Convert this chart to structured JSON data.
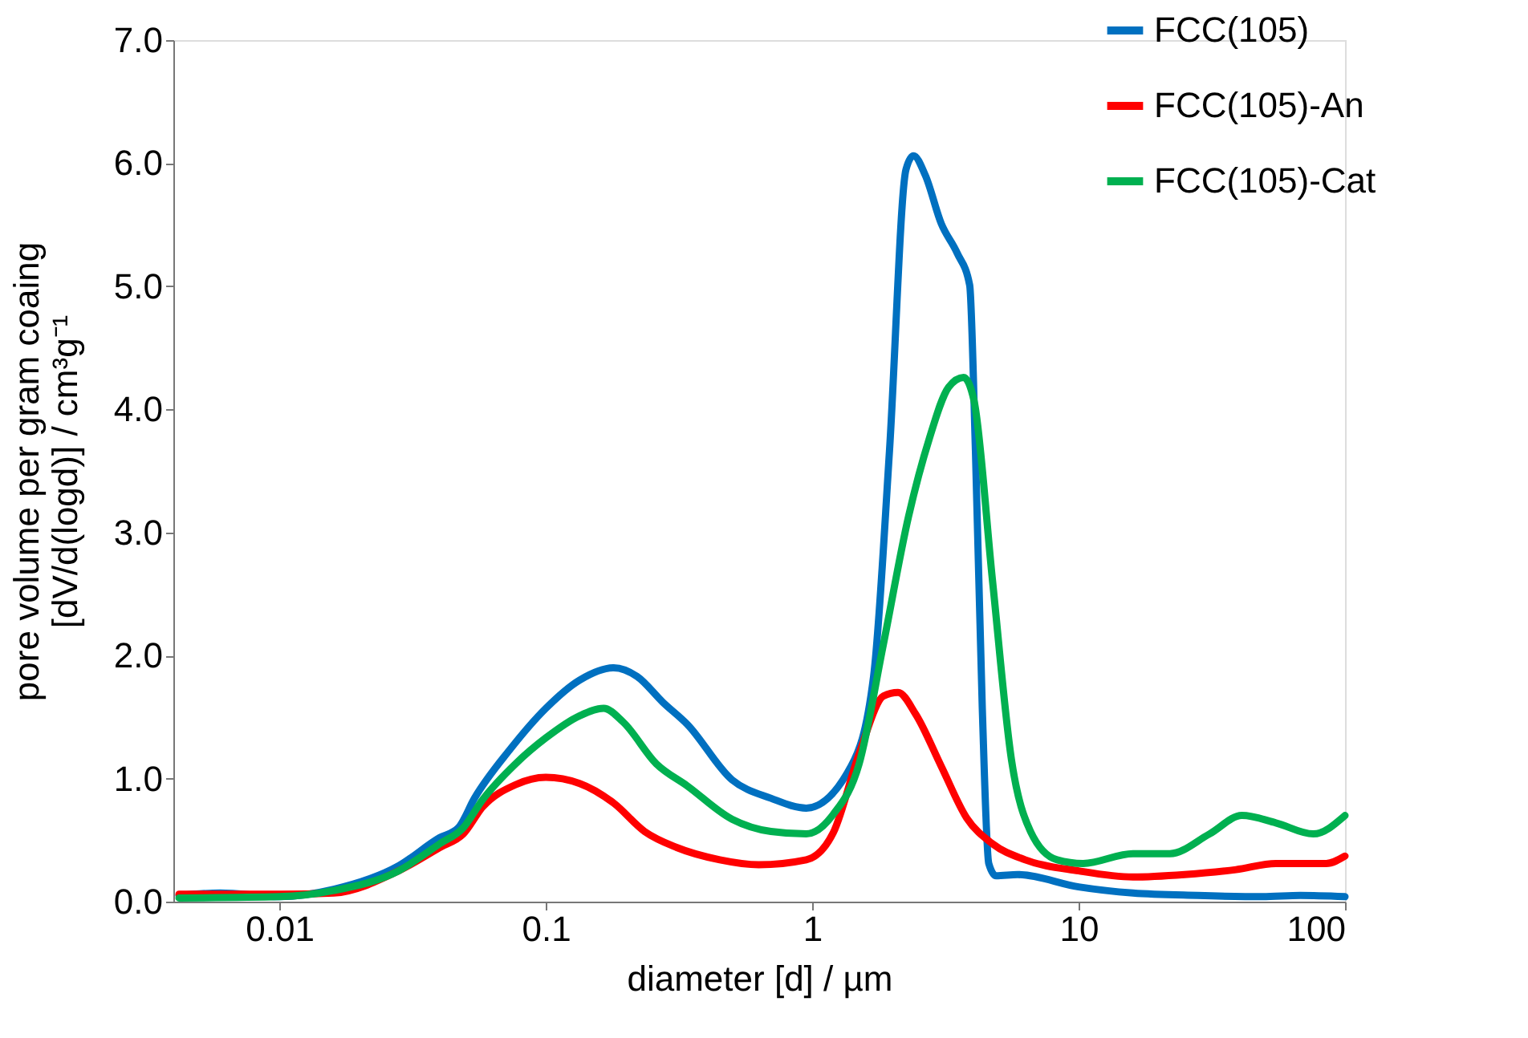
{
  "chart_data": {
    "type": "line",
    "xlabel": "diameter [d] / µm",
    "ylabel": "pore volume per gram coaing\n[dV/d(logd)] / cm³g⁻¹",
    "log": "x",
    "xlim": [
      0.004,
      100
    ],
    "xticks": [
      0.01,
      0.1,
      1,
      10,
      100
    ],
    "ylim": [
      0,
      7
    ],
    "yticks": [
      {
        "value": 0,
        "label": "0.0"
      },
      {
        "value": 1,
        "label": "1.0"
      },
      {
        "value": 2,
        "label": "2.0"
      },
      {
        "value": 3,
        "label": "3.0"
      },
      {
        "value": 4,
        "label": "4.0"
      },
      {
        "value": 5,
        "label": "5.0"
      },
      {
        "value": 6,
        "label": "6.0"
      },
      {
        "value": 7,
        "label": "7.0"
      }
    ],
    "grid": false,
    "legend": "top right",
    "marker": "none",
    "line_style": "solid",
    "series": [
      {
        "name": "FCC(105)",
        "color": "#0070c0",
        "x": [
          0.0042,
          0.006,
          0.01,
          0.016,
          0.028,
          0.04,
          0.047,
          0.054,
          0.073,
          0.1,
          0.134,
          0.18,
          0.22,
          0.275,
          0.34,
          0.5,
          0.7,
          0.95,
          1.4,
          1.7,
          1.95,
          2.25,
          2.4,
          2.66,
          3.05,
          3.5,
          3.9,
          4.1,
          4.35,
          4.6,
          4.9,
          5.9,
          10,
          16,
          28,
          49,
          68,
          100
        ],
        "values": [
          0.05,
          0.07,
          0.04,
          0.1,
          0.29,
          0.52,
          0.6,
          0.84,
          1.23,
          1.57,
          1.8,
          1.9,
          1.83,
          1.62,
          1.44,
          0.99,
          0.84,
          0.76,
          1.1,
          1.83,
          3.66,
          5.95,
          6.06,
          5.9,
          5.51,
          5.27,
          5.01,
          3.66,
          1.57,
          0.31,
          0.21,
          0.22,
          0.12,
          0.07,
          0.05,
          0.04,
          0.05,
          0.04
        ]
      },
      {
        "name": "FCC(105)-An",
        "color": "#ff0000",
        "x": [
          0.0042,
          0.01,
          0.016,
          0.028,
          0.04,
          0.049,
          0.058,
          0.077,
          0.1,
          0.134,
          0.18,
          0.235,
          0.31,
          0.45,
          0.63,
          0.95,
          1.2,
          1.5,
          1.85,
          2.1,
          2.45,
          3.05,
          3.8,
          4.75,
          6.3,
          10,
          16,
          25,
          39,
          55,
          85,
          100
        ],
        "values": [
          0.06,
          0.06,
          0.07,
          0.25,
          0.44,
          0.55,
          0.77,
          0.95,
          1.01,
          0.96,
          0.8,
          0.57,
          0.44,
          0.34,
          0.3,
          0.34,
          0.56,
          1.2,
          1.67,
          1.7,
          1.52,
          1.1,
          0.68,
          0.47,
          0.34,
          0.25,
          0.2,
          0.22,
          0.26,
          0.31,
          0.31,
          0.37
        ]
      },
      {
        "name": "FCC(105)-Cat",
        "color": "#00b050",
        "x": [
          0.0042,
          0.01,
          0.016,
          0.028,
          0.04,
          0.049,
          0.058,
          0.077,
          0.1,
          0.134,
          0.165,
          0.195,
          0.26,
          0.34,
          0.5,
          0.7,
          0.95,
          1.2,
          1.5,
          1.85,
          2.3,
          2.75,
          3.25,
          3.7,
          4.05,
          4.75,
          5.6,
          6.6,
          8.3,
          10.4,
          16,
          22,
          31,
          41,
          55,
          76,
          100
        ],
        "values": [
          0.03,
          0.04,
          0.09,
          0.25,
          0.47,
          0.6,
          0.83,
          1.12,
          1.33,
          1.51,
          1.57,
          1.46,
          1.12,
          0.94,
          0.67,
          0.57,
          0.55,
          0.71,
          1.12,
          2.09,
          3.13,
          3.76,
          4.18,
          4.26,
          4.07,
          2.61,
          1.15,
          0.57,
          0.34,
          0.31,
          0.39,
          0.39,
          0.55,
          0.7,
          0.64,
          0.55,
          0.7
        ]
      }
    ]
  }
}
